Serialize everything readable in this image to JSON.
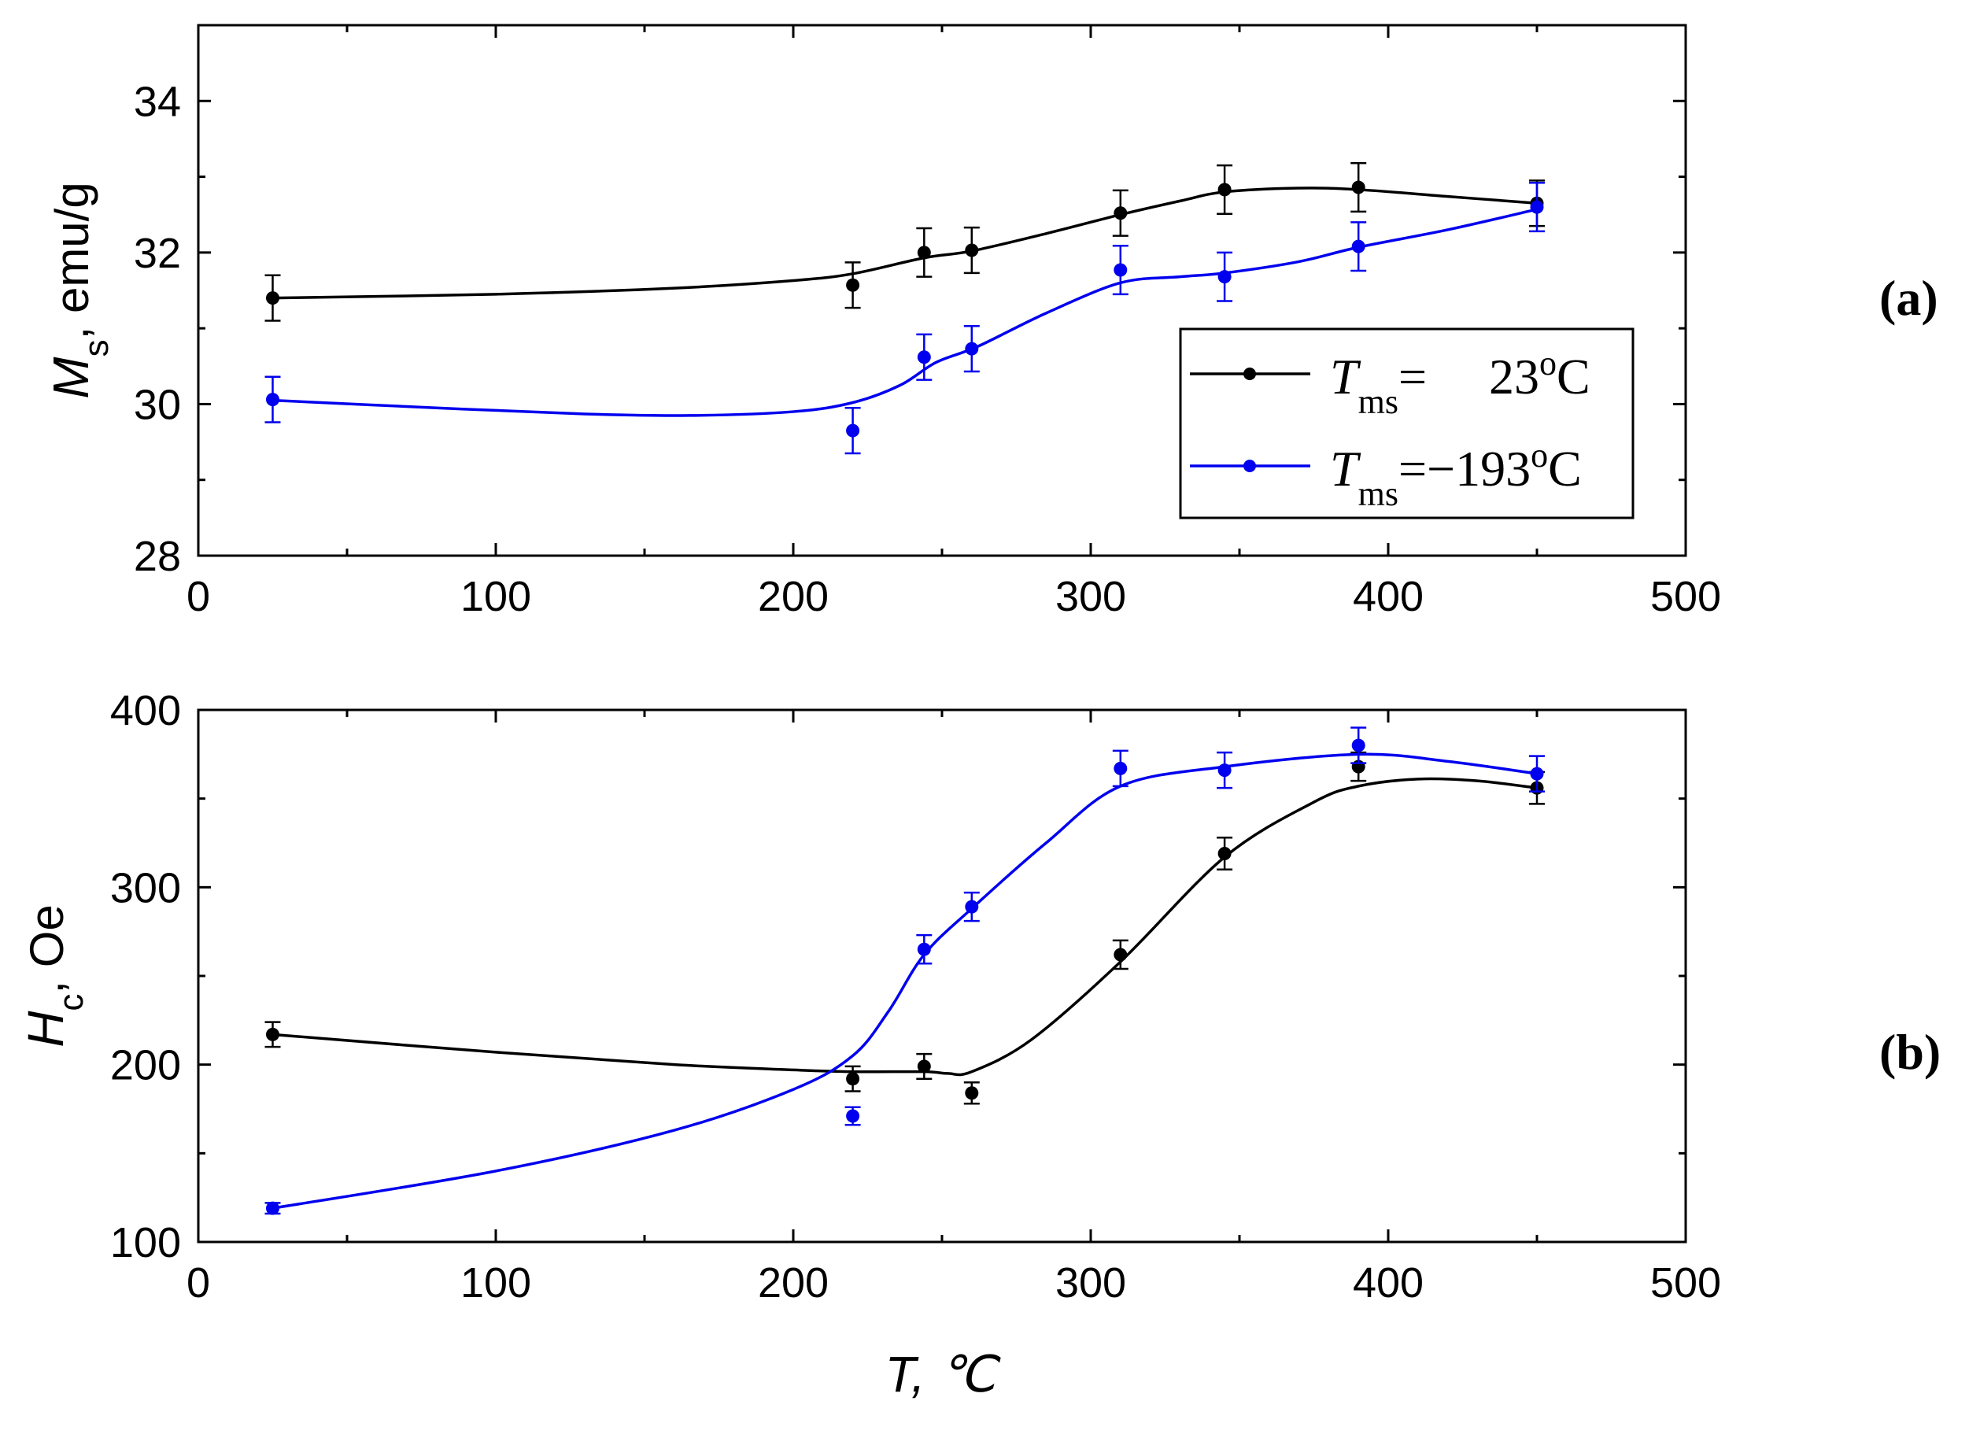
{
  "chart_data": [
    {
      "type": "line",
      "panel": "(a)",
      "ylabel": {
        "symbol": "M",
        "subscript": "s",
        "unit": ", emu/g"
      },
      "xlabel": "",
      "xlim": [
        0,
        500
      ],
      "ylim": [
        28,
        35
      ],
      "xticks": [
        0,
        100,
        200,
        300,
        400,
        500
      ],
      "yticks": [
        28,
        30,
        32,
        34
      ],
      "grid": false,
      "legend_position": "right-middle",
      "series": [
        {
          "name": "T_ms = 23oC",
          "legend": {
            "symbol": "T",
            "subscript": "ms",
            "eq": "=",
            "value": "23",
            "deg": "o",
            "unit": "C"
          },
          "color": "#000000",
          "points": [
            {
              "x": 25,
              "y": 31.4,
              "err": 0.3
            },
            {
              "x": 220,
              "y": 31.57,
              "err": 0.3
            },
            {
              "x": 244,
              "y": 32.0,
              "err": 0.32
            },
            {
              "x": 260,
              "y": 32.03,
              "err": 0.3
            },
            {
              "x": 310,
              "y": 32.52,
              "err": 0.3
            },
            {
              "x": 345,
              "y": 32.83,
              "err": 0.32
            },
            {
              "x": 390,
              "y": 32.86,
              "err": 0.32
            },
            {
              "x": 450,
              "y": 32.65,
              "err": 0.3
            }
          ],
          "curve": [
            [
              25,
              31.4
            ],
            [
              100,
              31.45
            ],
            [
              160,
              31.53
            ],
            [
              200,
              31.63
            ],
            [
              220,
              31.72
            ],
            [
              244,
              31.93
            ],
            [
              260,
              32.02
            ],
            [
              285,
              32.25
            ],
            [
              310,
              32.5
            ],
            [
              330,
              32.68
            ],
            [
              345,
              32.8
            ],
            [
              370,
              32.85
            ],
            [
              390,
              32.83
            ],
            [
              420,
              32.74
            ],
            [
              450,
              32.65
            ]
          ]
        },
        {
          "name": "T_ms = -193oC",
          "legend": {
            "symbol": "T",
            "subscript": "ms",
            "eq": "=",
            "value": "−193",
            "deg": "o",
            "unit": "C"
          },
          "color": "#0000ee",
          "points": [
            {
              "x": 25,
              "y": 30.06,
              "err": 0.3
            },
            {
              "x": 220,
              "y": 29.65,
              "err": 0.3
            },
            {
              "x": 244,
              "y": 30.62,
              "err": 0.3
            },
            {
              "x": 260,
              "y": 30.73,
              "err": 0.3
            },
            {
              "x": 310,
              "y": 31.77,
              "err": 0.32
            },
            {
              "x": 345,
              "y": 31.68,
              "err": 0.32
            },
            {
              "x": 390,
              "y": 32.08,
              "err": 0.32
            },
            {
              "x": 450,
              "y": 32.6,
              "err": 0.32
            }
          ],
          "curve": [
            [
              25,
              30.05
            ],
            [
              80,
              29.95
            ],
            [
              130,
              29.87
            ],
            [
              165,
              29.85
            ],
            [
              200,
              29.9
            ],
            [
              220,
              30.02
            ],
            [
              236,
              30.25
            ],
            [
              248,
              30.55
            ],
            [
              262,
              30.76
            ],
            [
              285,
              31.2
            ],
            [
              310,
              31.6
            ],
            [
              330,
              31.68
            ],
            [
              345,
              31.73
            ],
            [
              370,
              31.88
            ],
            [
              390,
              32.07
            ],
            [
              420,
              32.3
            ],
            [
              450,
              32.57
            ]
          ]
        }
      ]
    },
    {
      "type": "line",
      "panel": "(b)",
      "ylabel": {
        "symbol": "H",
        "subscript": "c",
        "unit": ", Oe"
      },
      "xlabel": {
        "symbol": "T",
        "unit": ",  ℃"
      },
      "xlim": [
        0,
        500
      ],
      "ylim": [
        100,
        400
      ],
      "xticks": [
        0,
        100,
        200,
        300,
        400,
        500
      ],
      "yticks": [
        100,
        200,
        300,
        400
      ],
      "grid": false,
      "series": [
        {
          "name": "T_ms = 23oC",
          "color": "#000000",
          "points": [
            {
              "x": 25,
              "y": 217,
              "err": 7
            },
            {
              "x": 220,
              "y": 192,
              "err": 7
            },
            {
              "x": 244,
              "y": 199,
              "err": 7
            },
            {
              "x": 260,
              "y": 184,
              "err": 6
            },
            {
              "x": 310,
              "y": 262,
              "err": 8
            },
            {
              "x": 345,
              "y": 319,
              "err": 9
            },
            {
              "x": 390,
              "y": 368,
              "err": 8
            },
            {
              "x": 450,
              "y": 356,
              "err": 9
            }
          ],
          "curve": [
            [
              25,
              217
            ],
            [
              100,
              207
            ],
            [
              160,
              200
            ],
            [
              200,
              197
            ],
            [
              220,
              196
            ],
            [
              244,
              196
            ],
            [
              252,
              195
            ],
            [
              260,
              196
            ],
            [
              280,
              214
            ],
            [
              310,
              258
            ],
            [
              345,
              317
            ],
            [
              375,
              348
            ],
            [
              390,
              357
            ],
            [
              410,
              361
            ],
            [
              430,
              360
            ],
            [
              450,
              356
            ]
          ]
        },
        {
          "name": "T_ms = -193oC",
          "color": "#0000ee",
          "points": [
            {
              "x": 25,
              "y": 119,
              "err": 3
            },
            {
              "x": 220,
              "y": 171,
              "err": 5
            },
            {
              "x": 244,
              "y": 265,
              "err": 8
            },
            {
              "x": 260,
              "y": 289,
              "err": 8
            },
            {
              "x": 310,
              "y": 367,
              "err": 10
            },
            {
              "x": 345,
              "y": 366,
              "err": 10
            },
            {
              "x": 390,
              "y": 380,
              "err": 10
            },
            {
              "x": 450,
              "y": 364,
              "err": 10
            }
          ],
          "curve": [
            [
              25,
              119
            ],
            [
              100,
              140
            ],
            [
              160,
              163
            ],
            [
              200,
              186
            ],
            [
              220,
              205
            ],
            [
              232,
              230
            ],
            [
              244,
              262
            ],
            [
              260,
              288
            ],
            [
              285,
              325
            ],
            [
              310,
              357
            ],
            [
              345,
              368
            ],
            [
              390,
              375
            ],
            [
              420,
              371
            ],
            [
              450,
              364
            ]
          ]
        }
      ]
    }
  ]
}
